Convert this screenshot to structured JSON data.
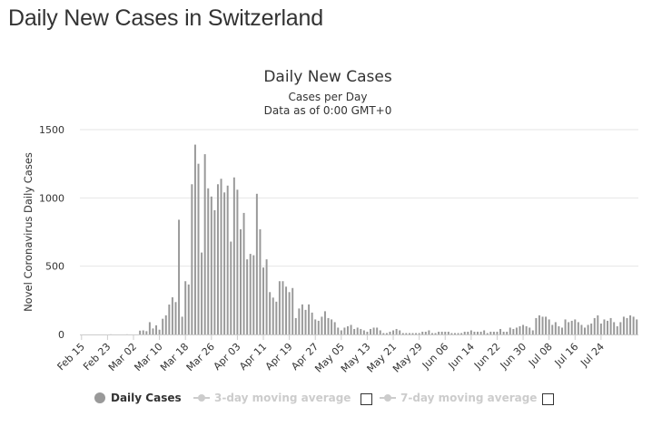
{
  "page": {
    "title": "Daily New Cases in Switzerland"
  },
  "legend": {
    "items": [
      {
        "label": "Daily Cases",
        "color": "#999999",
        "active": true
      },
      {
        "label": "3-day moving average",
        "color": "#cccccc",
        "active": false
      },
      {
        "label": "7-day moving average",
        "color": "#cccccc",
        "active": false
      }
    ]
  },
  "chart_data": {
    "type": "bar",
    "title": "Daily New Cases",
    "subtitle_lines": [
      "Cases per Day",
      "Data as of 0:00 GMT+0"
    ],
    "xlabel": "",
    "ylabel": "Novel Coronavirus Daily Cases",
    "ylim": [
      0,
      1500
    ],
    "yticks": [
      0,
      500,
      1000,
      1500
    ],
    "grid": true,
    "bar_color": "#999999",
    "x_tick_labels": [
      "Feb 15",
      "Feb 23",
      "Mar 02",
      "Mar 10",
      "Mar 18",
      "Mar 26",
      "Apr 03",
      "Apr 11",
      "Apr 19",
      "Apr 27",
      "May 05",
      "May 13",
      "May 21",
      "May 29",
      "Jun 06",
      "Jun 14",
      "Jun 22",
      "Jun 30",
      "Jul 08",
      "Jul 16",
      "Jul 24"
    ],
    "start_date": "Feb 15",
    "series": [
      {
        "name": "Daily Cases",
        "values": [
          0,
          0,
          0,
          0,
          0,
          0,
          0,
          0,
          0,
          1,
          0,
          0,
          0,
          0,
          1,
          0,
          0,
          0,
          28,
          30,
          24,
          90,
          44,
          67,
          35,
          115,
          140,
          219,
          272,
          237,
          840,
          130,
          390,
          366,
          1100,
          1390,
          1250,
          600,
          1320,
          1070,
          1010,
          910,
          1100,
          1140,
          1040,
          1090,
          680,
          1150,
          1060,
          770,
          890,
          550,
          590,
          580,
          1030,
          770,
          490,
          550,
          310,
          270,
          240,
          390,
          390,
          350,
          310,
          340,
          120,
          190,
          220,
          180,
          220,
          160,
          110,
          100,
          130,
          170,
          120,
          110,
          90,
          50,
          30,
          50,
          60,
          70,
          40,
          50,
          40,
          30,
          20,
          40,
          50,
          50,
          30,
          10,
          10,
          20,
          30,
          40,
          30,
          10,
          10,
          10,
          10,
          10,
          10,
          20,
          20,
          30,
          10,
          10,
          20,
          20,
          20,
          20,
          10,
          10,
          10,
          10,
          20,
          20,
          30,
          20,
          20,
          20,
          30,
          10,
          20,
          20,
          20,
          40,
          20,
          20,
          50,
          40,
          50,
          60,
          70,
          60,
          50,
          30,
          120,
          140,
          130,
          130,
          110,
          70,
          90,
          60,
          50,
          110,
          90,
          100,
          110,
          90,
          70,
          50,
          70,
          80,
          120,
          140,
          80,
          110,
          100,
          120,
          90,
          60,
          90,
          130,
          120,
          140,
          130,
          110
        ]
      }
    ]
  }
}
